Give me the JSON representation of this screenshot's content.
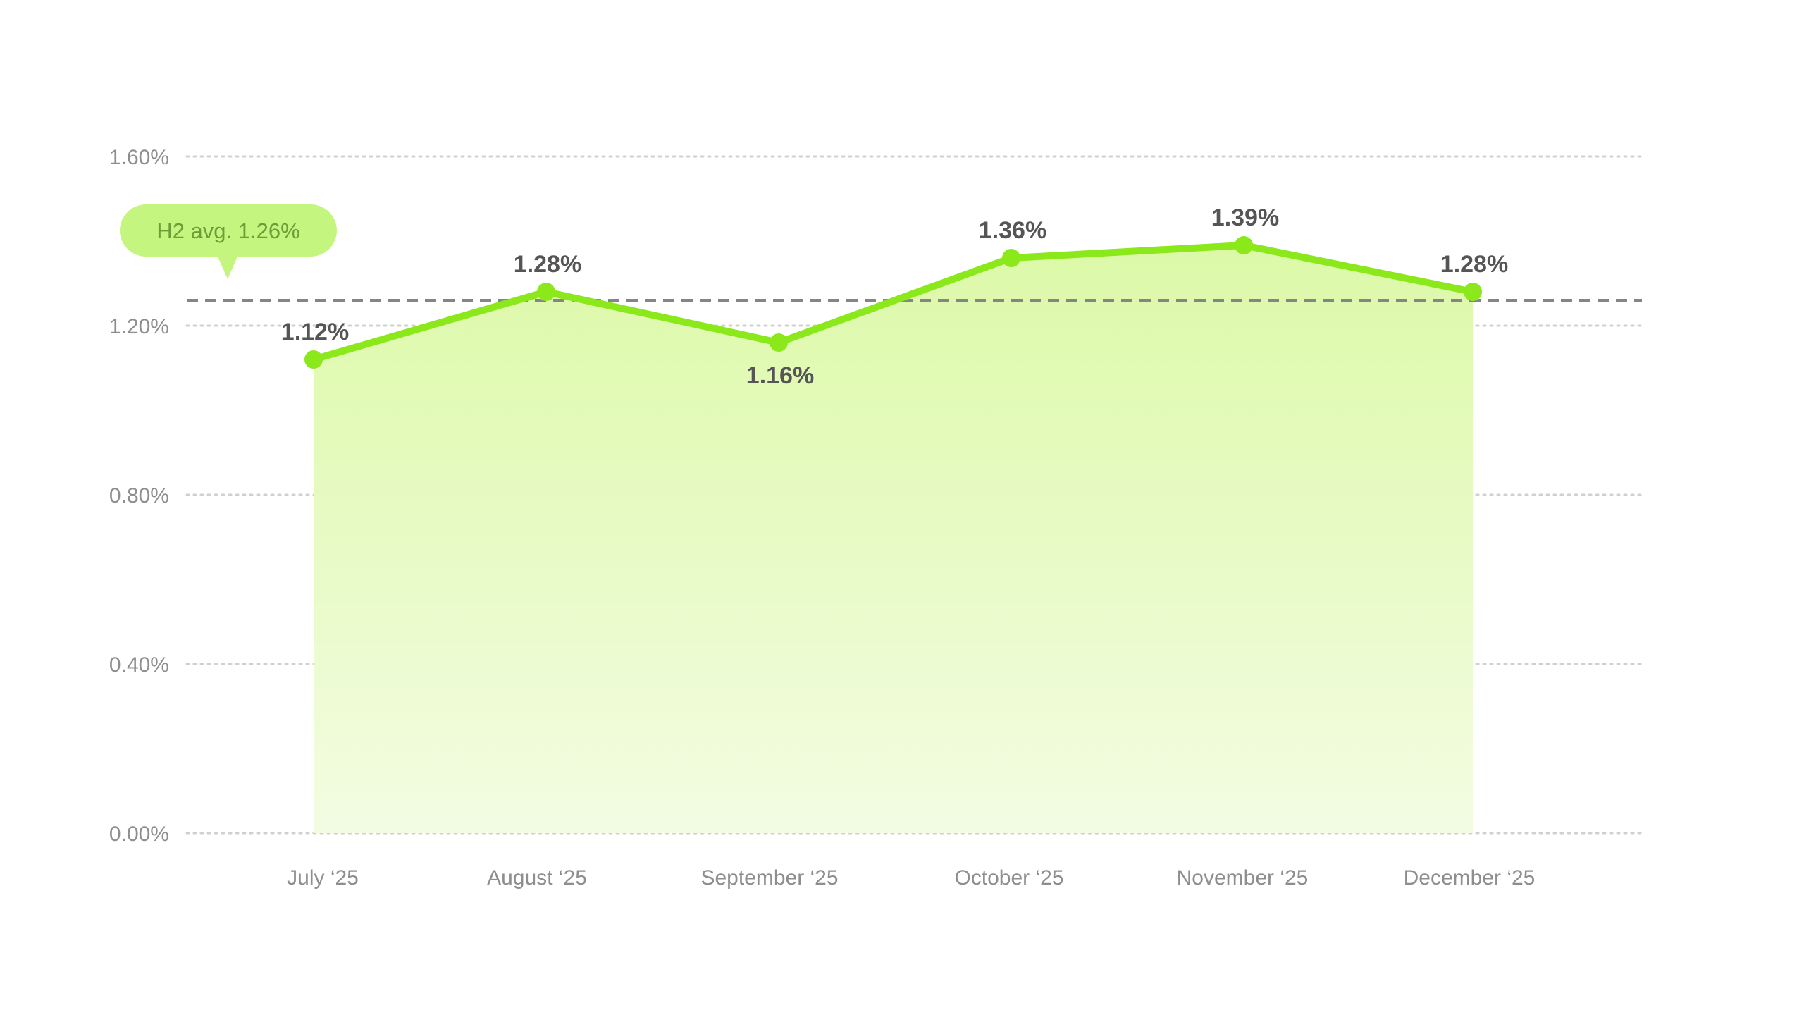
{
  "chart_data": {
    "type": "area",
    "categories": [
      "July ‘25",
      "August ‘25",
      "September ‘25",
      "October ‘25",
      "November ‘25",
      "December ‘25"
    ],
    "values": [
      1.12,
      1.28,
      1.16,
      1.36,
      1.39,
      1.28
    ],
    "data_labels": [
      "1.12%",
      "1.28%",
      "1.16%",
      "1.36%",
      "1.39%",
      "1.28%"
    ],
    "y_ticks": [
      0,
      0.4,
      0.8,
      1.2,
      1.6
    ],
    "y_tick_labels": [
      "0.00%",
      "0.40%",
      "0.80%",
      "1.20%",
      "1.60%"
    ],
    "ylim": [
      0,
      1.6
    ],
    "grid": true,
    "reference_line": {
      "value": 1.26,
      "label": "H2 avg. 1.26%"
    },
    "colors": {
      "line": "#8be81a",
      "area_top": "#dcf9a8",
      "area_bottom": "#f3fce2",
      "grid": "#d0d0d0",
      "reference_line": "#858585",
      "badge_bg": "#c4f57f",
      "badge_text": "#6d9c39",
      "data_label": "#555555",
      "tick_label": "#8e8e8e"
    }
  }
}
